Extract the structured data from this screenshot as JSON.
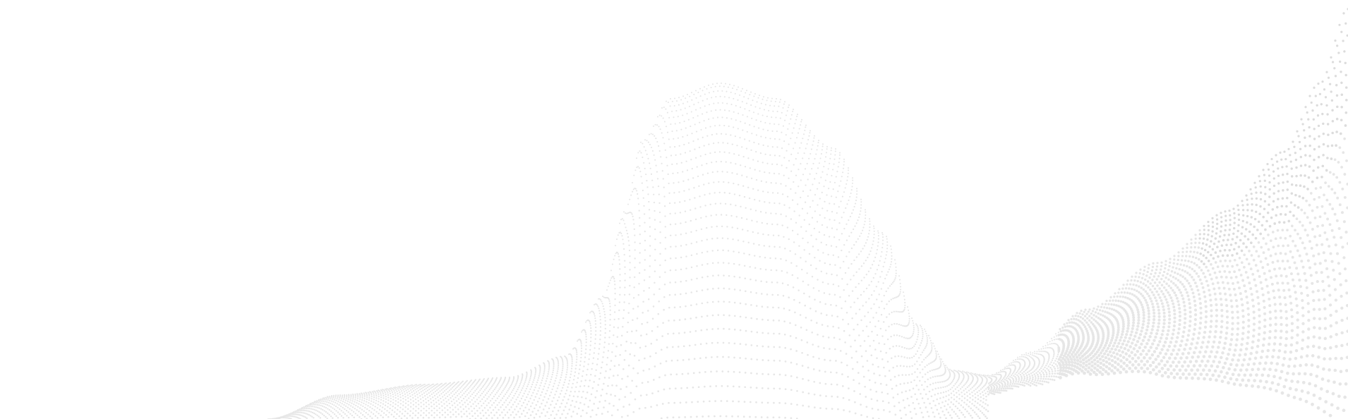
{
  "background": {
    "type": "decorative-dot-wave",
    "background_color": "#ffffff",
    "dot_color": "#e6e6e6",
    "dot_color_dense": "#dcdcdc"
  }
}
